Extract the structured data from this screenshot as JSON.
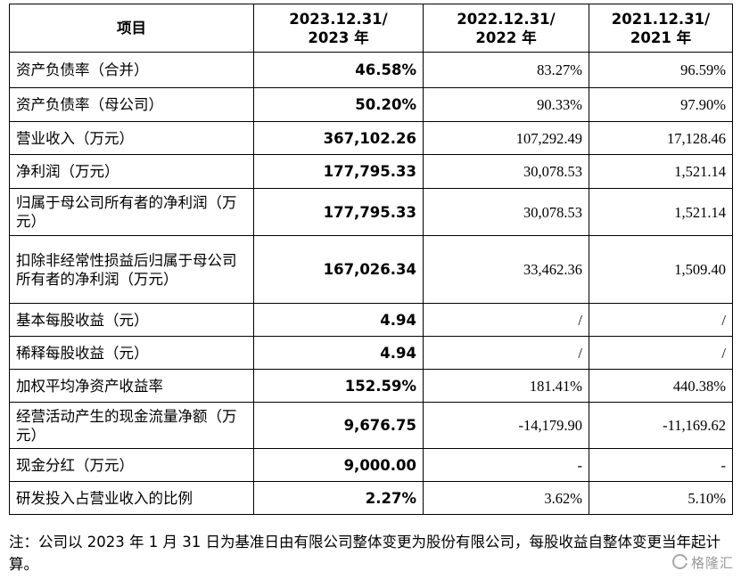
{
  "headers": [
    "项目",
    "2023.12.31/\n2023 年",
    "2022.12.31/\n2022 年",
    "2021.12.31/\n2021 年"
  ],
  "rows": [
    {
      "label": "资产负债率（合并）",
      "v2023": "46.58%",
      "v2022": "83.27%",
      "v2021": "96.59%"
    },
    {
      "label": "资产负债率（母公司）",
      "v2023": "50.20%",
      "v2022": "90.33%",
      "v2021": "97.90%"
    },
    {
      "label": "营业收入（万元）",
      "v2023": "367,102.26",
      "v2022": "107,292.49",
      "v2021": "17,128.46"
    },
    {
      "label": "净利润（万元）",
      "v2023": "177,795.33",
      "v2022": "30,078.53",
      "v2021": "1,521.14"
    },
    {
      "label": "归属于母公司所有者的净利润（万元）",
      "v2023": "177,795.33",
      "v2022": "30,078.53",
      "v2021": "1,521.14"
    },
    {
      "label": "扣除非经常性损益后归属于母公司所有者的净利润（万元）",
      "v2023": "167,026.34",
      "v2022": "33,462.36",
      "v2021": "1,509.40"
    },
    {
      "label": "基本每股收益（元）",
      "v2023": "4.94",
      "v2022": "/",
      "v2021": "/"
    },
    {
      "label": "稀释每股收益（元）",
      "v2023": "4.94",
      "v2022": "/",
      "v2021": "/"
    },
    {
      "label": "加权平均净资产收益率",
      "v2023": "152.59%",
      "v2022": "181.41%",
      "v2021": "440.38%"
    },
    {
      "label": "经营活动产生的现金流量净额（万元）",
      "v2023": "9,676.75",
      "v2022": "-14,179.90",
      "v2021": "-11,169.62"
    },
    {
      "label": "现金分红（万元）",
      "v2023": "9,000.00",
      "v2022": "-",
      "v2021": "-"
    },
    {
      "label": "研发投入占营业收入的比例",
      "v2023": "2.27%",
      "v2022": "3.62%",
      "v2021": "5.10%"
    }
  ],
  "note": "注：公司以 2023 年 1 月 31 日为基准日由有限公司整体变更为股份有限公司，每股收益自整体变更当年起计算。",
  "watermark": "格隆汇"
}
